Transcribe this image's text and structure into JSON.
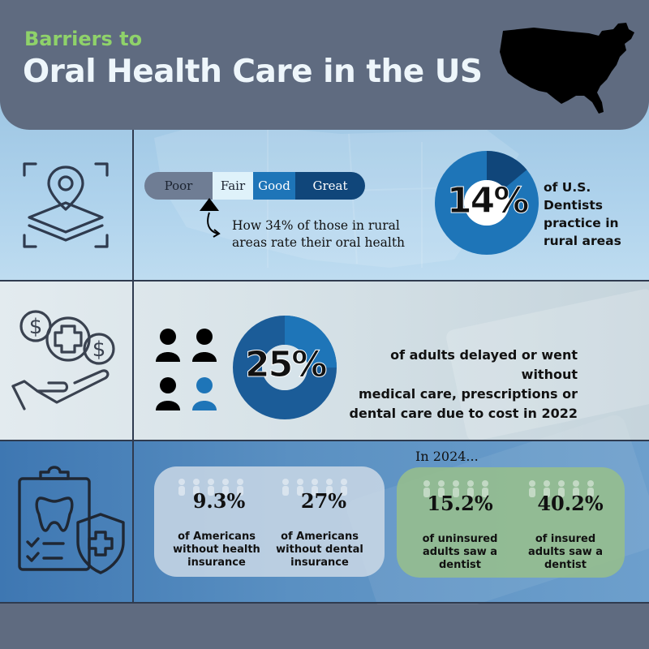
{
  "header": {
    "subtitle": "Barriers to",
    "title": "Oral Health Care in the US"
  },
  "section_rural": {
    "rating_scale": [
      "Poor",
      "Fair",
      "Good",
      "Great"
    ],
    "rating_annotation": [
      "How 34% of those in rural",
      "areas rate their oral health"
    ],
    "dentists_percent": "14%",
    "dentists_percent_value": 14,
    "dentists_label": [
      "of U.S.",
      "Dentists",
      "practice in",
      "rural areas"
    ]
  },
  "section_cost": {
    "delay_percent": "25%",
    "delay_percent_value": 25,
    "delay_label": [
      "of adults delayed or went without",
      "medical care, prescriptions or",
      "dental care due to cost in 2022"
    ]
  },
  "section_insurance": {
    "year_label": "In 2024...",
    "stats": [
      {
        "value": "9.3%",
        "label": [
          "of Americans",
          "without health",
          "insurance"
        ]
      },
      {
        "value": "27%",
        "label": [
          "of Americans",
          "without dental",
          "insurance"
        ]
      },
      {
        "value": "15.2%",
        "label": [
          "of uninsured",
          "adults saw a",
          "dentist"
        ]
      },
      {
        "value": "40.2%",
        "label": [
          "of insured",
          "adults saw a",
          "dentist"
        ]
      }
    ]
  },
  "colors": {
    "header_bg": "#5f6b80",
    "subtitle": "#8fd26a",
    "title": "#eef6fb",
    "blue_dark": "#10467a",
    "blue_mid": "#1e75b8",
    "green_box": "#96be8c"
  },
  "icons": [
    "united-states-map-icon",
    "location-layers-icon",
    "money-health-hand-icon",
    "people-icon",
    "dental-clipboard-shield-icon"
  ]
}
